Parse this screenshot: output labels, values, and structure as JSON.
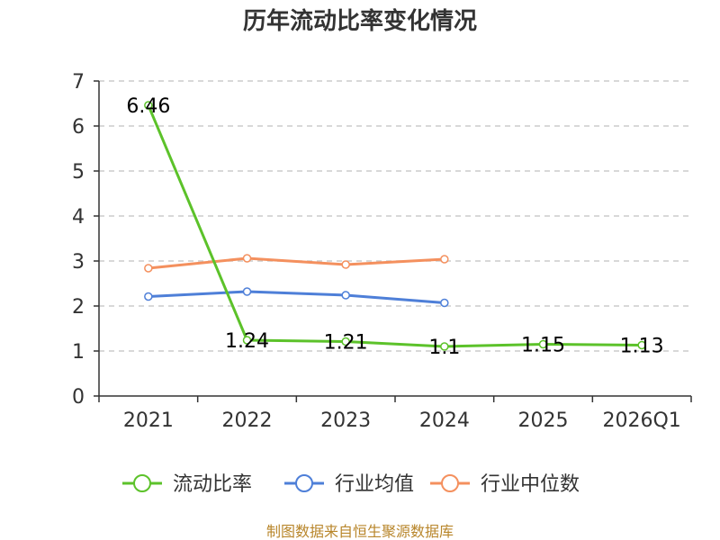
{
  "chart_data": {
    "type": "line",
    "title": "历年流动比率变化情况",
    "categories": [
      "2021",
      "2022",
      "2023",
      "2024",
      "2025",
      "2026Q1"
    ],
    "ylim": [
      0,
      7
    ],
    "yticks": [
      0,
      1,
      2,
      3,
      4,
      5,
      6,
      7
    ],
    "grid": true,
    "legend_position": "bottom",
    "series": [
      {
        "name": "流动比率",
        "color": "#5cc22a",
        "values": [
          6.46,
          1.24,
          1.21,
          1.1,
          1.15,
          1.13
        ],
        "labels": [
          "6.46",
          "1.24",
          "1.21",
          "1.1",
          "1.15",
          "1.13"
        ]
      },
      {
        "name": "行业均值",
        "color": "#4e7fd8",
        "values": [
          2.21,
          2.32,
          2.24,
          2.07,
          null,
          null
        ]
      },
      {
        "name": "行业中位数",
        "color": "#f4905e",
        "values": [
          2.84,
          3.06,
          2.92,
          3.04,
          null,
          null
        ]
      }
    ],
    "source": "制图数据来自恒生聚源数据库"
  }
}
